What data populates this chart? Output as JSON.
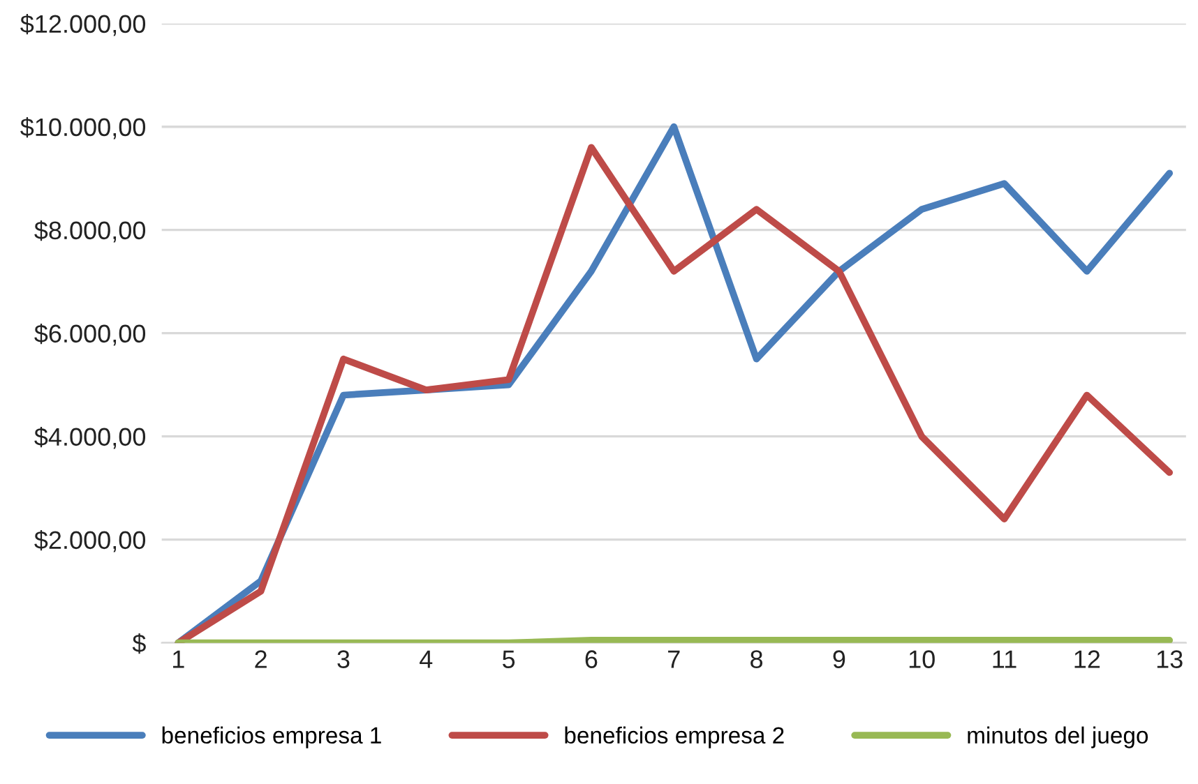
{
  "chart_data": {
    "type": "line",
    "categories": [
      "1",
      "2",
      "3",
      "4",
      "5",
      "6",
      "7",
      "8",
      "9",
      "10",
      "11",
      "12",
      "13"
    ],
    "series": [
      {
        "name": "beneficios empresa 1",
        "color": "#4a7ebb",
        "values": [
          0,
          1200,
          4800,
          4900,
          5000,
          7200,
          10000,
          5500,
          7200,
          8400,
          8900,
          7200,
          9100
        ]
      },
      {
        "name": "beneficios empresa 2",
        "color": "#be4b48",
        "values": [
          0,
          1000,
          5500,
          4900,
          5100,
          9600,
          7200,
          8400,
          7200,
          4000,
          2400,
          4800,
          3300
        ]
      },
      {
        "name": "minutos del juego",
        "color": "#98b954",
        "values": [
          0,
          0,
          0,
          0,
          0,
          50,
          50,
          50,
          50,
          50,
          50,
          50,
          50
        ]
      }
    ],
    "ylim": [
      0,
      12000
    ],
    "yticks": [
      {
        "value": 0,
        "label": "$"
      },
      {
        "value": 2000,
        "label": "$2.000,00"
      },
      {
        "value": 4000,
        "label": "$4.000,00"
      },
      {
        "value": 6000,
        "label": "$6.000,00"
      },
      {
        "value": 8000,
        "label": "$8.000,00"
      },
      {
        "value": 10000,
        "label": "$10.000,00"
      },
      {
        "value": 12000,
        "label": "$12.000,00"
      }
    ],
    "grid": "y",
    "legend": "bottom",
    "marker": "none",
    "line_style": "solid"
  }
}
